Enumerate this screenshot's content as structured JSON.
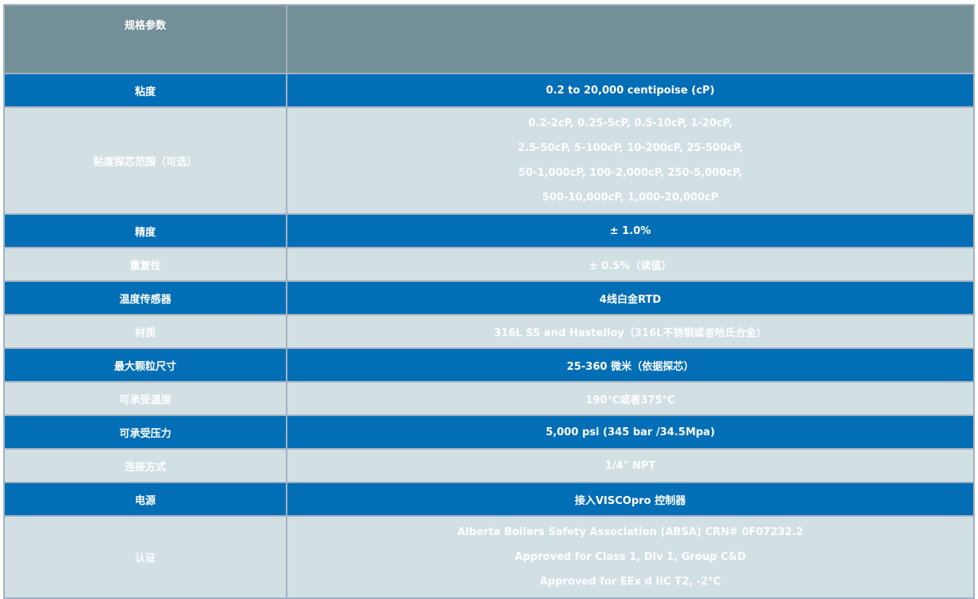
{
  "header": {
    "label": "规格参数",
    "value": ""
  },
  "rows": [
    {
      "label": "粘度",
      "style": "blue",
      "lines": [
        "0.2 to 20,000 centipoise (cP)"
      ]
    },
    {
      "label": "粘度探芯范围（可选）",
      "style": "light",
      "lines": [
        "0.2-2cP, 0.25-5cP, 0.5-10cP, 1-20cP,",
        "2.5-50cP, 5-100cP, 10-200cP, 25-500cP,",
        "50-1,000cP, 100-2,000cP, 250-5,000cP,",
        "500-10,000cP, 1,000-20,000cP"
      ]
    },
    {
      "label": "精度",
      "style": "blue",
      "lines": [
        "± 1.0%"
      ]
    },
    {
      "label": "重复性",
      "style": "light",
      "lines": [
        "± 0.5%（读值）"
      ]
    },
    {
      "label": "温度传感器",
      "style": "blue",
      "lines": [
        "4线白金RTD"
      ]
    },
    {
      "label": "材质",
      "style": "light",
      "lines": [
        "316L SS and Hastelloy（316L不锈钢或者哈氏合金）"
      ]
    },
    {
      "label": "最大颗粒尺寸",
      "style": "blue",
      "lines": [
        "25-360 微米（依据探芯）"
      ]
    },
    {
      "label": "可承受温度",
      "style": "light",
      "lines": [
        "190℃或者375°C"
      ]
    },
    {
      "label": "可承受压力",
      "style": "blue",
      "lines": [
        "5,000 psi (345 bar /34.5Mpa)"
      ]
    },
    {
      "label": "连接方式",
      "style": "light",
      "lines": [
        "1/4\" NPT"
      ]
    },
    {
      "label": "电源",
      "style": "blue",
      "lines": [
        "接入VISCOpro 控制器"
      ]
    },
    {
      "label": "认证",
      "style": "light",
      "lines": [
        "Alberta Boilers Safety Association (ABSA) CRN# 0F07232.2",
        "Approved for Class 1, Div 1, Group C&D",
        "Approved for EEx d IIC T2, -2°C"
      ]
    }
  ],
  "colors": {
    "header": "#738f97",
    "blue": "#026eb6",
    "light": "#d2e0e3",
    "border": "#a3b1c2"
  }
}
